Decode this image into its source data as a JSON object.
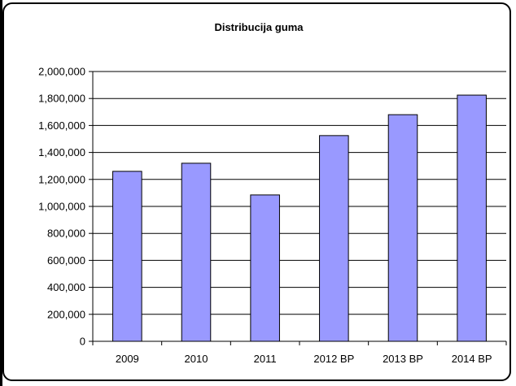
{
  "chart_data": {
    "type": "bar",
    "title": "Distribucija guma",
    "categories": [
      "2009",
      "2010",
      "2011",
      "2012 BP",
      "2013 BP",
      "2014 BP"
    ],
    "values": [
      1260000,
      1320000,
      1085000,
      1525000,
      1680000,
      1825000
    ],
    "ylim": [
      0,
      2000000
    ],
    "yticks": [
      0,
      200000,
      400000,
      600000,
      800000,
      1000000,
      1200000,
      1400000,
      1600000,
      1800000,
      2000000
    ],
    "ytick_labels": [
      "0",
      "200,000",
      "400,000",
      "600,000",
      "800,000",
      "1,000,000",
      "1,200,000",
      "1,400,000",
      "1,600,000",
      "1,800,000",
      "2,000,000"
    ],
    "grid": true,
    "colors": {
      "bar_fill": "#9999ff",
      "bar_stroke": "#000000",
      "grid": "#000000"
    }
  }
}
